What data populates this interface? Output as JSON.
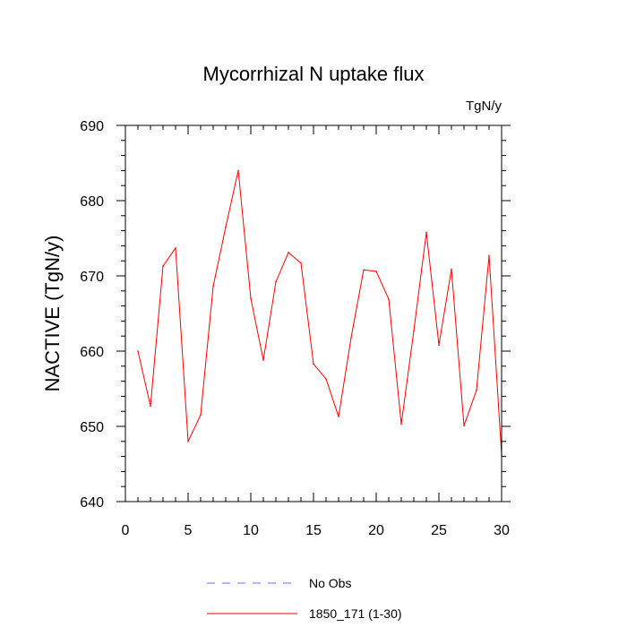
{
  "chart_data": {
    "type": "line",
    "title": "Mycorrhizal N uptake flux",
    "units_label": "TgN/y",
    "xlabel": "",
    "ylabel": "NACTIVE  (TgN/y)",
    "xlim": [
      0,
      30
    ],
    "ylim": [
      640,
      690
    ],
    "x_ticks": [
      0,
      5,
      10,
      15,
      20,
      25,
      30
    ],
    "y_ticks": [
      640,
      650,
      660,
      670,
      680,
      690
    ],
    "grid": false,
    "legend_position": "bottom-center",
    "legend": [
      {
        "name": "No Obs",
        "color": "#6f6fff",
        "style": "dashed"
      },
      {
        "name": "1850_171 (1-30)",
        "color": "#ff0000",
        "style": "solid"
      }
    ],
    "series": [
      {
        "name": "1850_171 (1-30)",
        "color": "#ff0000",
        "x": [
          1,
          2,
          3,
          4,
          5,
          6,
          7,
          8,
          9,
          10,
          11,
          12,
          13,
          14,
          15,
          16,
          17,
          18,
          19,
          20,
          21,
          22,
          23,
          24,
          25,
          26,
          27,
          28,
          29,
          30
        ],
        "values": [
          660.0,
          652.7,
          671.3,
          673.7,
          648.0,
          651.5,
          668.6,
          676.5,
          684.0,
          667.0,
          658.8,
          669.2,
          673.1,
          671.7,
          658.3,
          656.3,
          651.3,
          661.8,
          670.8,
          670.6,
          666.9,
          650.3,
          662.7,
          675.8,
          660.8,
          670.9,
          650.1,
          654.8,
          672.7,
          646.2
        ]
      }
    ]
  }
}
